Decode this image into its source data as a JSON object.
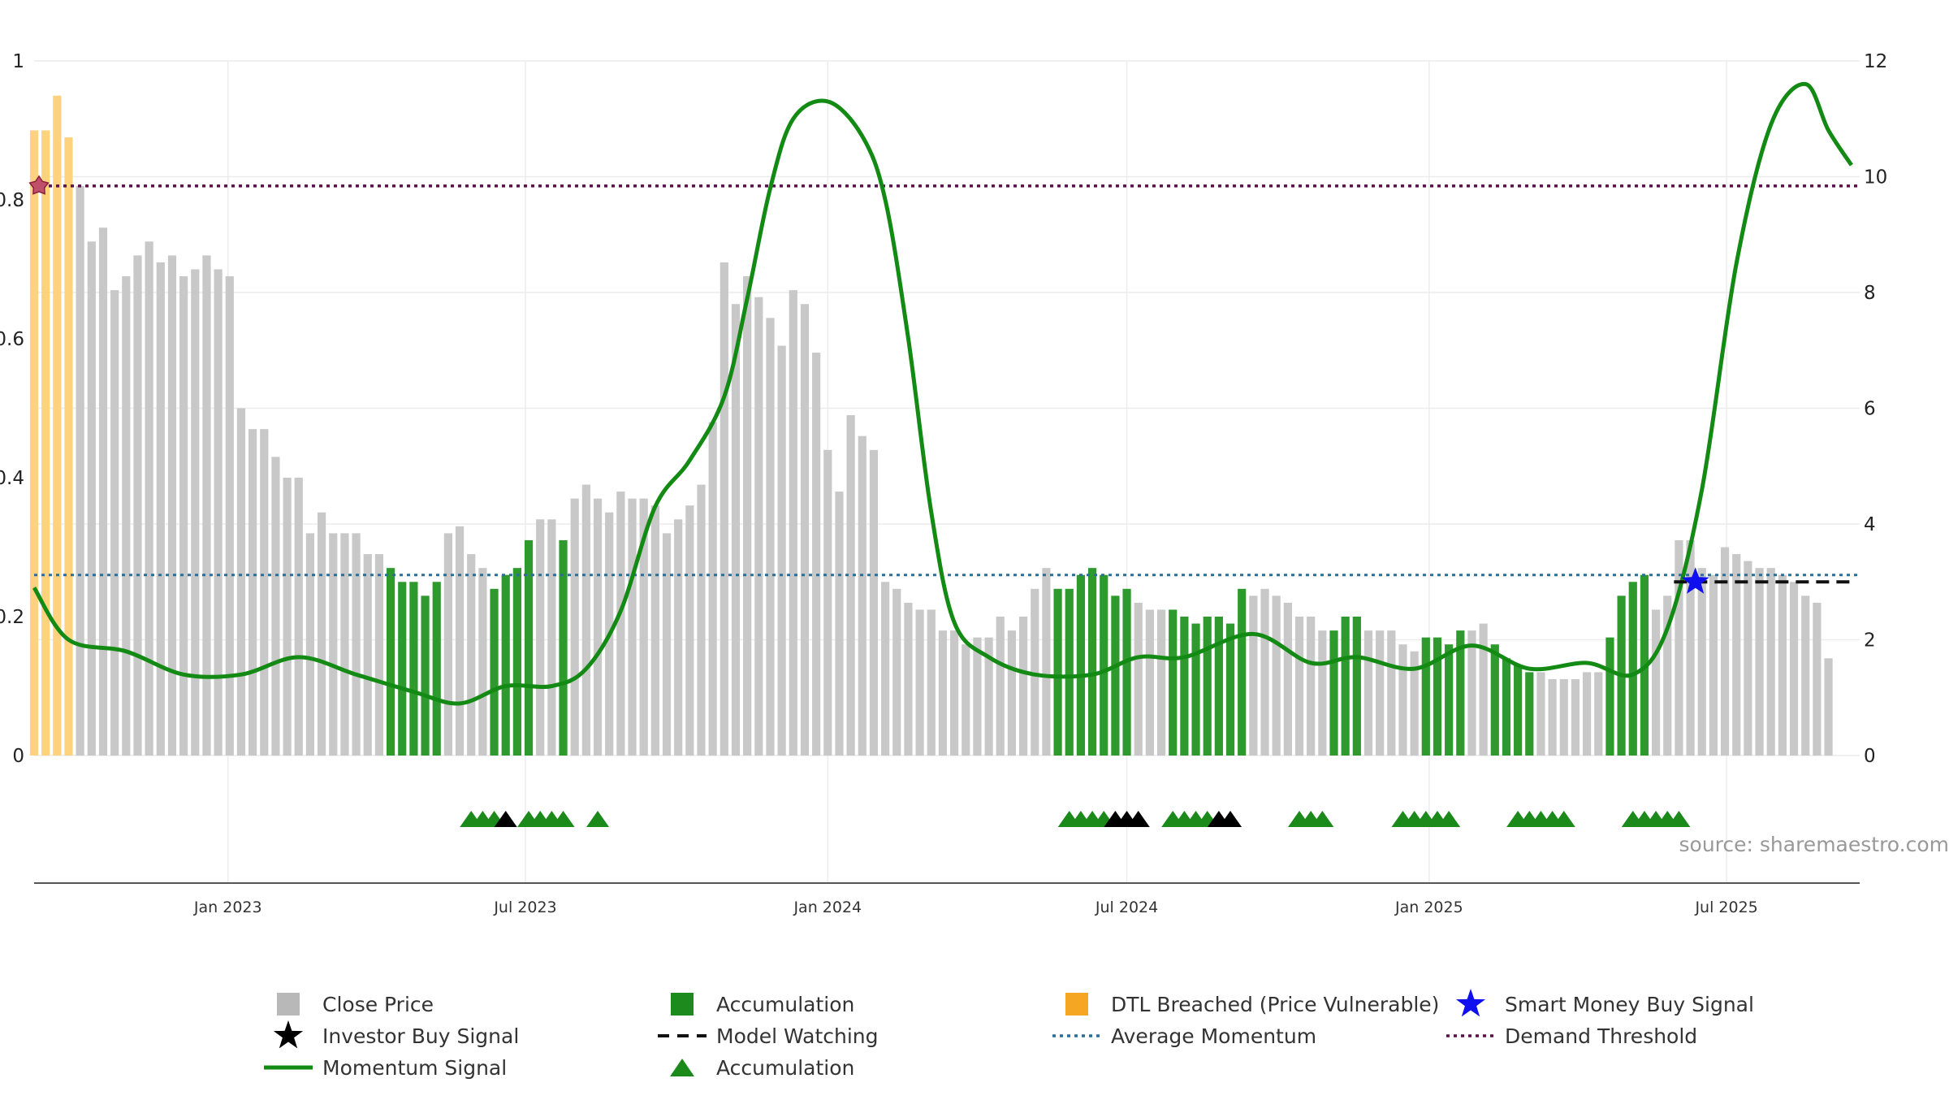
{
  "colors": {
    "close_price": "#c8c8c8",
    "accumulation": "#2e9a2e",
    "dtl_breached": "#ffd27f",
    "momentum": "#138a13",
    "average_momentum": "#2a6f97",
    "demand_threshold": "#5a0f4a",
    "smart_money": "#1010ee",
    "investor_signal": "#000000",
    "accumulation_marker": "#1b8a1b"
  },
  "source_label": "source: sharemaestro.com",
  "chart_data": {
    "type": "bar",
    "left_axis": {
      "min": 0,
      "max": 1,
      "ticks": [
        "0",
        "0.2",
        "0.4",
        "0.6",
        "0.8",
        "1"
      ]
    },
    "right_axis": {
      "min": 0,
      "max": 12,
      "ticks": [
        "0",
        "2",
        "4",
        "6",
        "8",
        "10",
        "12"
      ]
    },
    "x_ticks": [
      "Jan 2023",
      "Jul 2023",
      "Jan 2024",
      "Jul 2024",
      "Jan 2025",
      "Jul 2025"
    ],
    "x_range": [
      "2022-09-05",
      "2025-09-20"
    ],
    "grid": true,
    "legend_position": "bottom",
    "average_momentum": 0.26,
    "demand_threshold": 0.82,
    "bars": {
      "start_date": "2022-09-05",
      "interval_days": 7,
      "values": [
        0.9,
        0.9,
        0.95,
        0.89,
        0.82,
        0.74,
        0.76,
        0.67,
        0.69,
        0.72,
        0.74,
        0.71,
        0.72,
        0.69,
        0.7,
        0.72,
        0.7,
        0.69,
        0.5,
        0.47,
        0.47,
        0.43,
        0.4,
        0.4,
        0.32,
        0.35,
        0.32,
        0.32,
        0.32,
        0.29,
        0.29,
        0.27,
        0.25,
        0.25,
        0.23,
        0.25,
        0.32,
        0.33,
        0.29,
        0.27,
        0.24,
        0.26,
        0.27,
        0.31,
        0.34,
        0.34,
        0.31,
        0.37,
        0.39,
        0.37,
        0.35,
        0.38,
        0.37,
        0.37,
        0.36,
        0.32,
        0.34,
        0.36,
        0.39,
        0.48,
        0.71,
        0.65,
        0.69,
        0.66,
        0.63,
        0.59,
        0.67,
        0.65,
        0.58,
        0.44,
        0.38,
        0.49,
        0.46,
        0.44,
        0.25,
        0.24,
        0.22,
        0.21,
        0.21,
        0.18,
        0.18,
        0.16,
        0.17,
        0.17,
        0.2,
        0.18,
        0.2,
        0.24,
        0.27,
        0.24,
        0.24,
        0.26,
        0.27,
        0.26,
        0.23,
        0.24,
        0.22,
        0.21,
        0.21,
        0.21,
        0.2,
        0.19,
        0.2,
        0.2,
        0.19,
        0.24,
        0.23,
        0.24,
        0.23,
        0.22,
        0.2,
        0.2,
        0.18,
        0.18,
        0.2,
        0.2,
        0.18,
        0.18,
        0.18,
        0.16,
        0.15,
        0.17,
        0.17,
        0.16,
        0.18,
        0.18,
        0.19,
        0.16,
        0.14,
        0.13,
        0.12,
        0.12,
        0.11,
        0.11,
        0.11,
        0.12,
        0.12,
        0.17,
        0.23,
        0.25,
        0.26,
        0.21,
        0.23,
        0.31,
        0.31,
        0.27,
        0.26,
        0.3,
        0.29,
        0.28,
        0.27,
        0.27,
        0.26,
        0.25,
        0.23,
        0.22,
        0.14
      ],
      "accumulation_weeks": [
        31,
        32,
        33,
        34,
        35,
        40,
        41,
        42,
        43,
        46,
        89,
        90,
        91,
        92,
        93,
        94,
        95,
        99,
        100,
        101,
        102,
        103,
        104,
        105,
        113,
        114,
        115,
        121,
        122,
        123,
        124,
        127,
        128,
        129,
        130,
        137,
        138,
        139,
        140
      ],
      "dtl_breached_weeks": [
        0,
        1,
        2,
        3
      ]
    },
    "momentum": [
      {
        "d": "2022-09-05",
        "v": 2.9
      },
      {
        "d": "2022-09-26",
        "v": 2.0
      },
      {
        "d": "2022-10-31",
        "v": 1.8
      },
      {
        "d": "2022-12-05",
        "v": 1.4
      },
      {
        "d": "2023-01-09",
        "v": 1.4
      },
      {
        "d": "2023-02-13",
        "v": 1.7
      },
      {
        "d": "2023-03-20",
        "v": 1.4
      },
      {
        "d": "2023-04-24",
        "v": 1.1
      },
      {
        "d": "2023-05-22",
        "v": 0.9
      },
      {
        "d": "2023-06-19",
        "v": 1.2
      },
      {
        "d": "2023-07-17",
        "v": 1.2
      },
      {
        "d": "2023-08-07",
        "v": 1.5
      },
      {
        "d": "2023-08-28",
        "v": 2.5
      },
      {
        "d": "2023-09-18",
        "v": 4.3
      },
      {
        "d": "2023-10-09",
        "v": 5.1
      },
      {
        "d": "2023-10-30",
        "v": 6.2
      },
      {
        "d": "2023-11-13",
        "v": 7.9
      },
      {
        "d": "2023-11-27",
        "v": 9.8
      },
      {
        "d": "2023-12-11",
        "v": 11.0
      },
      {
        "d": "2024-01-01",
        "v": 11.3
      },
      {
        "d": "2024-01-22",
        "v": 10.7
      },
      {
        "d": "2024-02-05",
        "v": 9.6
      },
      {
        "d": "2024-02-19",
        "v": 7.2
      },
      {
        "d": "2024-03-04",
        "v": 4.2
      },
      {
        "d": "2024-03-18",
        "v": 2.3
      },
      {
        "d": "2024-04-08",
        "v": 1.7
      },
      {
        "d": "2024-05-06",
        "v": 1.4
      },
      {
        "d": "2024-06-10",
        "v": 1.4
      },
      {
        "d": "2024-07-08",
        "v": 1.7
      },
      {
        "d": "2024-08-05",
        "v": 1.7
      },
      {
        "d": "2024-09-16",
        "v": 2.1
      },
      {
        "d": "2024-10-21",
        "v": 1.6
      },
      {
        "d": "2024-11-18",
        "v": 1.7
      },
      {
        "d": "2024-12-23",
        "v": 1.5
      },
      {
        "d": "2025-01-27",
        "v": 1.9
      },
      {
        "d": "2025-03-03",
        "v": 1.5
      },
      {
        "d": "2025-04-07",
        "v": 1.6
      },
      {
        "d": "2025-05-05",
        "v": 1.4
      },
      {
        "d": "2025-05-26",
        "v": 2.2
      },
      {
        "d": "2025-06-16",
        "v": 4.6
      },
      {
        "d": "2025-07-07",
        "v": 8.5
      },
      {
        "d": "2025-07-28",
        "v": 10.9
      },
      {
        "d": "2025-08-18",
        "v": 11.6
      },
      {
        "d": "2025-09-01",
        "v": 10.8
      },
      {
        "d": "2025-09-15",
        "v": 10.2
      }
    ],
    "model_watching": {
      "start": "2025-05-30",
      "end": "2025-09-15",
      "value": 0.25
    },
    "smart_money_buy_signal": {
      "date": "2025-06-12",
      "value": 0.25
    },
    "marker_groups": [
      {
        "dates": [
          "2023-05-29",
          "2023-06-05",
          "2023-06-12",
          "2023-06-19"
        ],
        "types": [
          "accumulation",
          "accumulation",
          "accumulation",
          "investor"
        ]
      },
      {
        "dates": [
          "2023-07-03",
          "2023-07-10",
          "2023-07-17",
          "2023-07-24"
        ],
        "types": [
          "accumulation",
          "accumulation",
          "accumulation",
          "accumulation"
        ]
      },
      {
        "dates": [
          "2023-08-14"
        ],
        "types": [
          "accumulation"
        ]
      },
      {
        "dates": [
          "2024-05-27",
          "2024-06-03",
          "2024-06-10",
          "2024-06-17",
          "2024-06-24",
          "2024-07-01",
          "2024-07-08"
        ],
        "types": [
          "accumulation",
          "accumulation",
          "accumulation",
          "accumulation",
          "investor",
          "investor",
          "investor"
        ]
      },
      {
        "dates": [
          "2024-07-29",
          "2024-08-05",
          "2024-08-12",
          "2024-08-19",
          "2024-08-26",
          "2024-09-02"
        ],
        "types": [
          "accumulation",
          "accumulation",
          "accumulation",
          "accumulation",
          "investor",
          "investor"
        ]
      },
      {
        "dates": [
          "2024-10-14",
          "2024-10-21",
          "2024-10-28"
        ],
        "types": [
          "accumulation",
          "accumulation",
          "accumulation"
        ]
      },
      {
        "dates": [
          "2024-12-16",
          "2024-12-23",
          "2024-12-30",
          "2025-01-06",
          "2025-01-13"
        ],
        "types": [
          "accumulation",
          "accumulation",
          "accumulation",
          "accumulation",
          "accumulation"
        ]
      },
      {
        "dates": [
          "2025-02-24",
          "2025-03-03",
          "2025-03-10",
          "2025-03-17",
          "2025-03-24"
        ],
        "types": [
          "accumulation",
          "accumulation",
          "accumulation",
          "accumulation",
          "accumulation"
        ]
      },
      {
        "dates": [
          "2025-05-05",
          "2025-05-12",
          "2025-05-19",
          "2025-05-26",
          "2025-06-02"
        ],
        "types": [
          "accumulation",
          "accumulation",
          "accumulation",
          "accumulation",
          "accumulation"
        ]
      }
    ],
    "legend": [
      {
        "label": "Close Price",
        "icon": "gray-square-icon"
      },
      {
        "label": "Accumulation",
        "icon": "green-square-icon"
      },
      {
        "label": "DTL Breached (Price Vulnerable)",
        "icon": "orange-square-icon"
      },
      {
        "label": "Smart Money Buy Signal",
        "icon": "blue-star-icon"
      },
      {
        "label": "Investor Buy Signal",
        "icon": "black-star-icon"
      },
      {
        "label": "Model Watching",
        "icon": "black-dash-icon"
      },
      {
        "label": "Average Momentum",
        "icon": "blue-dotted-line-icon"
      },
      {
        "label": "Demand Threshold",
        "icon": "purple-dotted-line-icon"
      },
      {
        "label": "Momentum Signal",
        "icon": "green-line-icon"
      },
      {
        "label": "Accumulation",
        "icon": "green-triangle-icon"
      }
    ]
  }
}
